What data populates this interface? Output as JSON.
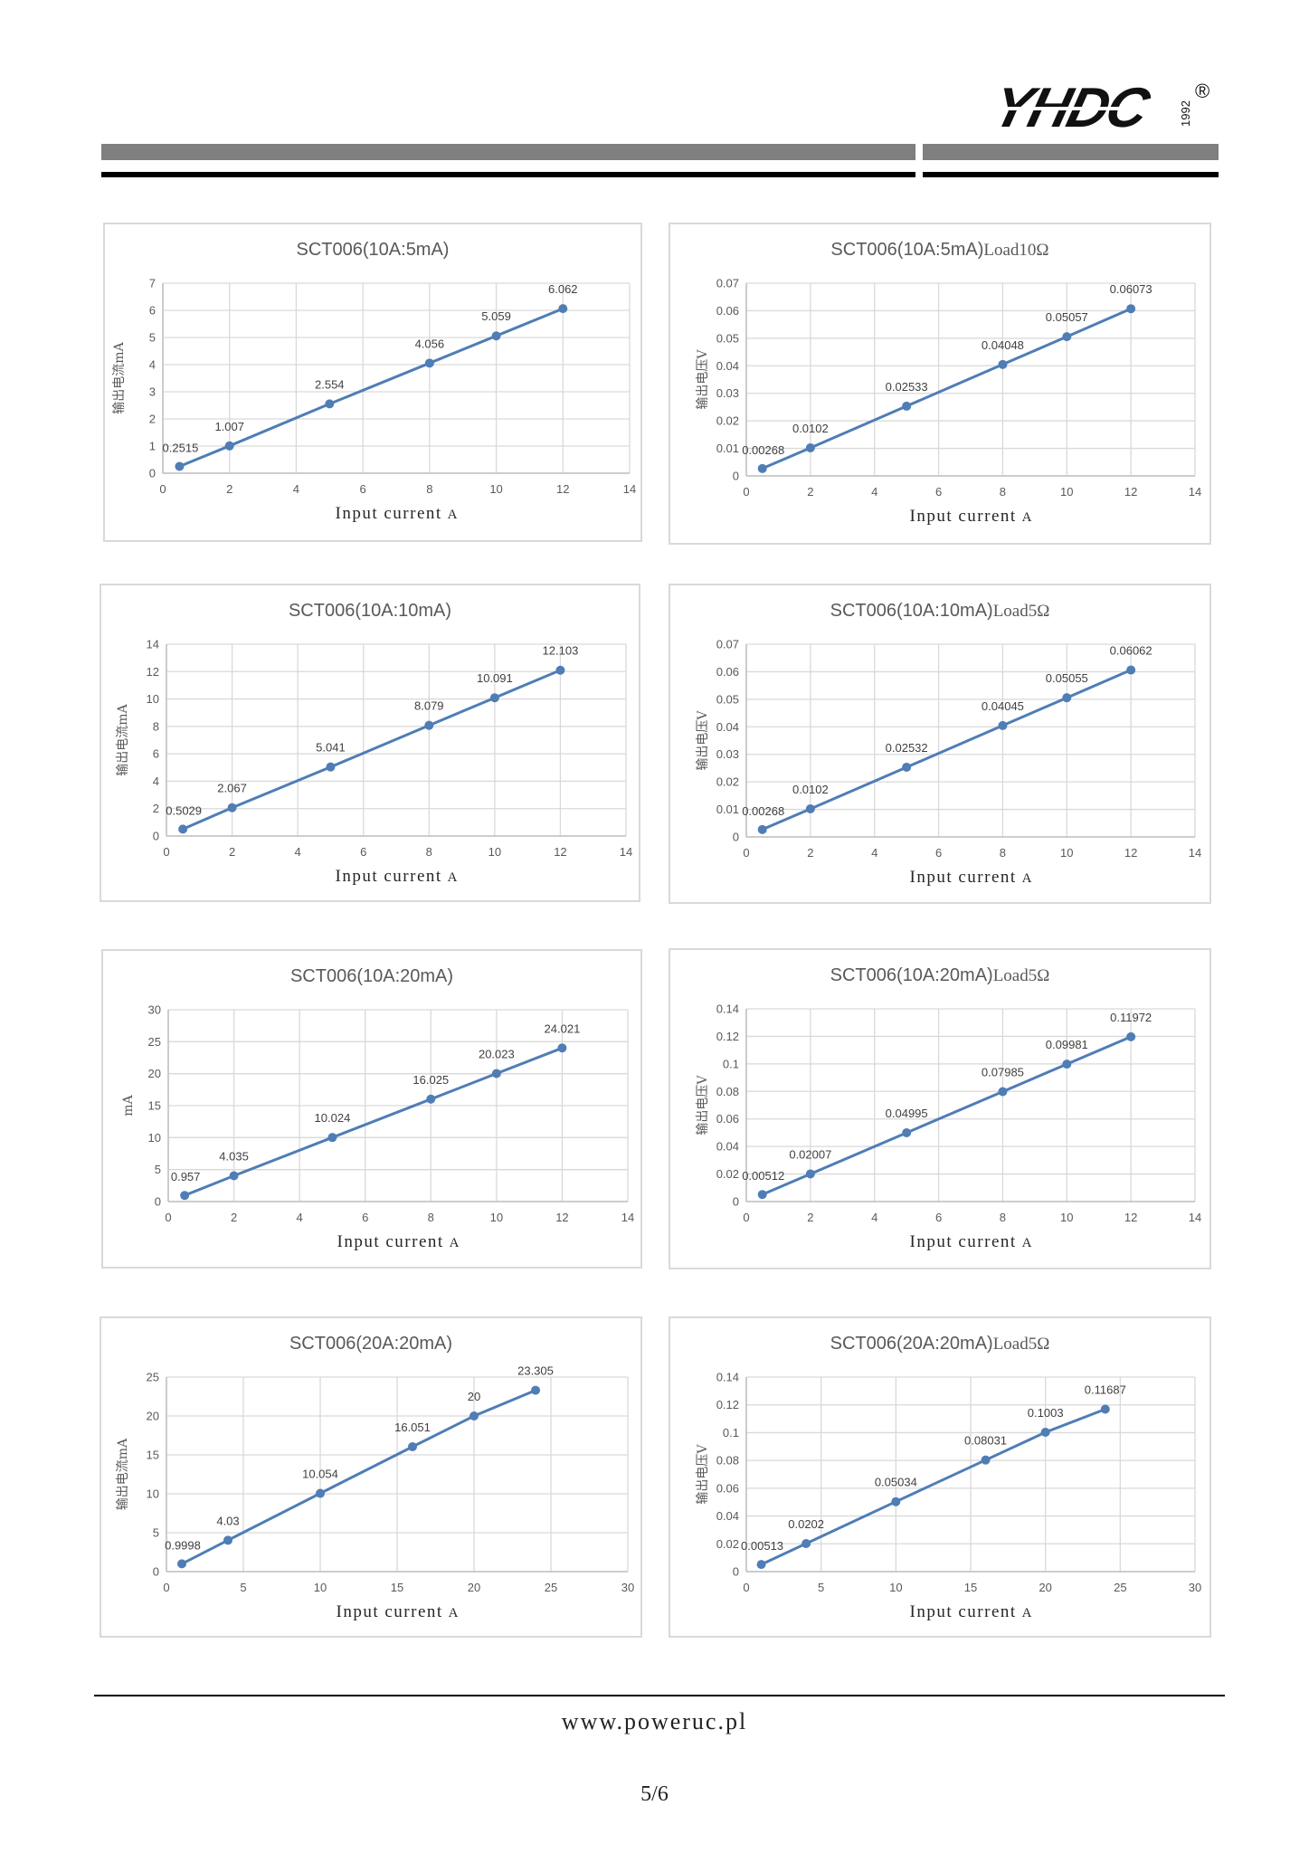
{
  "header": {
    "logo_text": "YHDC",
    "logo_year": "1992",
    "registered_mark": "®"
  },
  "footer": {
    "website": "www.poweruc.pl",
    "page_number": "5/6"
  },
  "colors": {
    "series": "#4f7db5",
    "grid": "#d9d9d9",
    "text": "#595959"
  },
  "chart_data": [
    {
      "type": "line",
      "title": "SCT006(10A:5mA)",
      "xlabel": "Input current",
      "xunit": "A",
      "ylabel": "输出电流mA",
      "xlim": [
        0,
        14
      ],
      "xstep": 2,
      "ylim": [
        0,
        7
      ],
      "ystep": 1,
      "yticks": [
        "0",
        "1",
        "2",
        "3",
        "4",
        "5",
        "6",
        "7"
      ],
      "x": [
        0.5,
        2,
        5,
        8,
        10,
        12
      ],
      "values": [
        0.2515,
        1.007,
        2.554,
        4.056,
        5.059,
        6.062
      ],
      "labels": [
        "0.2515",
        "1.007",
        "2.554",
        "4.056",
        "5.059",
        "6.062"
      ]
    },
    {
      "type": "line",
      "title": "SCT006(10A:5mA)",
      "title_suffix": "Load10Ω",
      "xlabel": "Input current",
      "xunit": "A",
      "ylabel": "输出电压V",
      "xlim": [
        0,
        14
      ],
      "xstep": 2,
      "ylim": [
        0,
        0.07
      ],
      "ystep": 0.01,
      "yticks": [
        "0",
        "0.01",
        "0.02",
        "0.03",
        "0.04",
        "0.05",
        "0.06",
        "0.07"
      ],
      "x": [
        0.5,
        2,
        5,
        8,
        10,
        12
      ],
      "values": [
        0.00268,
        0.0102,
        0.02533,
        0.04048,
        0.05057,
        0.06073
      ],
      "labels": [
        "0.00268",
        "0.0102",
        "0.02533",
        "0.04048",
        "0.05057",
        "0.06073"
      ]
    },
    {
      "type": "line",
      "title": "SCT006(10A:10mA)",
      "xlabel": "Input current",
      "xunit": "A",
      "ylabel": "输出电流mA",
      "xlim": [
        0,
        14
      ],
      "xstep": 2,
      "ylim": [
        0,
        14
      ],
      "ystep": 2,
      "yticks": [
        "0",
        "2",
        "4",
        "6",
        "8",
        "10",
        "12",
        "14"
      ],
      "x": [
        0.5,
        2,
        5,
        8,
        10,
        12
      ],
      "values": [
        0.5029,
        2.067,
        5.041,
        8.079,
        10.091,
        12.103
      ],
      "labels": [
        "0.5029",
        "2.067",
        "5.041",
        "8.079",
        "10.091",
        "12.103"
      ]
    },
    {
      "type": "line",
      "title": "SCT006(10A:10mA)",
      "title_suffix": "Load5Ω",
      "xlabel": "Input current",
      "xunit": "A",
      "ylabel": "输出电压V",
      "xlim": [
        0,
        14
      ],
      "xstep": 2,
      "ylim": [
        0,
        0.07
      ],
      "ystep": 0.01,
      "yticks": [
        "0",
        "0.01",
        "0.02",
        "0.03",
        "0.04",
        "0.05",
        "0.06",
        "0.07"
      ],
      "x": [
        0.5,
        2,
        5,
        8,
        10,
        12
      ],
      "values": [
        0.00268,
        0.0102,
        0.02532,
        0.04045,
        0.05055,
        0.06062
      ],
      "labels": [
        "0.00268",
        "0.0102",
        "0.02532",
        "0.04045",
        "0.05055",
        "0.06062"
      ]
    },
    {
      "type": "line",
      "title": "SCT006(10A:20mA)",
      "xlabel": "Input current",
      "xunit": "A",
      "ylabel": "mA",
      "xlim": [
        0,
        14
      ],
      "xstep": 2,
      "ylim": [
        0,
        30
      ],
      "ystep": 5,
      "yticks": [
        "0",
        "5",
        "10",
        "15",
        "20",
        "25",
        "30"
      ],
      "x": [
        0.5,
        2,
        5,
        8,
        10,
        12
      ],
      "values": [
        0.957,
        4.035,
        10.024,
        16.025,
        20.023,
        24.021
      ],
      "labels": [
        "0.957",
        "4.035",
        "10.024",
        "16.025",
        "20.023",
        "24.021"
      ]
    },
    {
      "type": "line",
      "title": "SCT006(10A:20mA)",
      "title_suffix": "Load5Ω",
      "xlabel": "Input current",
      "xunit": "A",
      "ylabel": "输出电压V",
      "xlim": [
        0,
        14
      ],
      "xstep": 2,
      "ylim": [
        0,
        0.14
      ],
      "ystep": 0.02,
      "yticks": [
        "0",
        "0.02",
        "0.04",
        "0.06",
        "0.08",
        "0.1",
        "0.12",
        "0.14"
      ],
      "x": [
        0.5,
        2,
        5,
        8,
        10,
        12
      ],
      "values": [
        0.00512,
        0.02007,
        0.04995,
        0.07985,
        0.09981,
        0.11972
      ],
      "labels": [
        "0.00512",
        "0.02007",
        "0.04995",
        "0.07985",
        "0.09981",
        "0.11972"
      ]
    },
    {
      "type": "line",
      "title": "SCT006(20A:20mA)",
      "xlabel": "Input current",
      "xunit": "A",
      "ylabel": "输出电流mA",
      "xlim": [
        0,
        30
      ],
      "xstep": 5,
      "ylim": [
        0,
        25
      ],
      "ystep": 5,
      "yticks": [
        "0",
        "5",
        "10",
        "15",
        "20",
        "25"
      ],
      "x": [
        1,
        4,
        10,
        16,
        20,
        24
      ],
      "values": [
        0.9998,
        4.03,
        10.054,
        16.051,
        20,
        23.305
      ],
      "labels": [
        "0.9998",
        "4.03",
        "10.054",
        "16.051",
        "20",
        "23.305"
      ]
    },
    {
      "type": "line",
      "title": "SCT006(20A:20mA)",
      "title_suffix": "Load5Ω",
      "xlabel": "Input current",
      "xunit": "A",
      "ylabel": "输出电压V",
      "xlim": [
        0,
        30
      ],
      "xstep": 5,
      "ylim": [
        0,
        0.14
      ],
      "ystep": 0.02,
      "yticks": [
        "0",
        "0.02",
        "0.04",
        "0.06",
        "0.08",
        "0.1",
        "0.12",
        "0.14"
      ],
      "x": [
        1,
        4,
        10,
        16,
        20,
        24
      ],
      "values": [
        0.00513,
        0.0202,
        0.05034,
        0.08031,
        0.1003,
        0.11687
      ],
      "labels": [
        "0.00513",
        "0.0202",
        "0.05034",
        "0.08031",
        "0.1003",
        "0.11687"
      ]
    }
  ]
}
